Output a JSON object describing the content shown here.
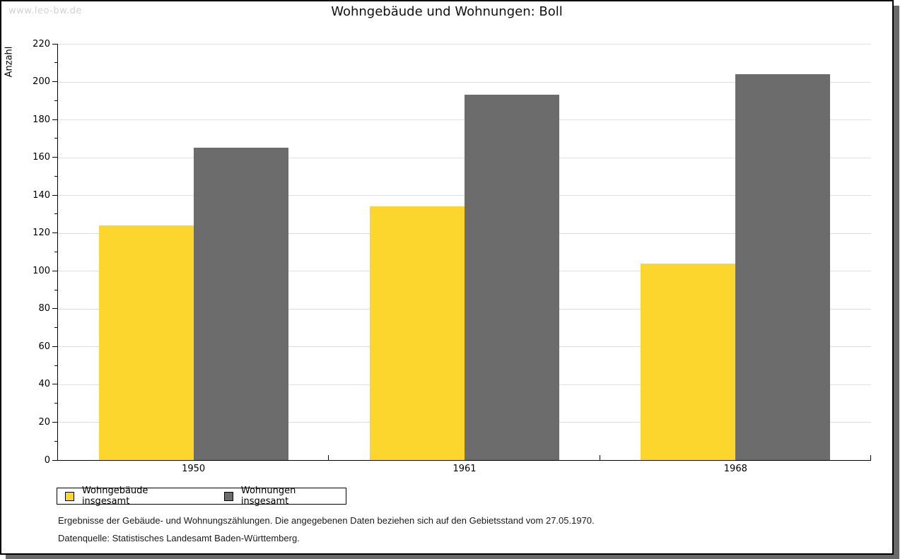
{
  "watermark": "www.leo-bw.de",
  "title": "Wohngebäude und Wohnungen: Boll",
  "chart_data": {
    "type": "bar",
    "title": "Wohngebäude und Wohnungen: Boll",
    "ylabel": "Anzahl",
    "xlabel": "",
    "categories": [
      "1950",
      "1961",
      "1968"
    ],
    "series": [
      {
        "name": "Wohngebäude insgesamt",
        "color": "#FCD52D",
        "values": [
          124,
          134,
          104
        ]
      },
      {
        "name": "Wohnungen insgesamt",
        "color": "#6C6C6C",
        "values": [
          165,
          193,
          204
        ]
      }
    ],
    "ylim": [
      0,
      220
    ],
    "y_major_step": 20,
    "y_minor_step": 10,
    "grid": true,
    "legend_position": "bottom-left"
  },
  "footnotes": {
    "line1": "Ergebnisse der Gebäude- und Wohnungszählungen. Die angegebenen Daten beziehen sich auf den Gebietsstand vom 27.05.1970.",
    "line2": "Datenquelle: Statistisches Landesamt Baden-Württemberg."
  },
  "colors": {
    "bar_yellow": "#FCD52D",
    "bar_gray": "#6C6C6C",
    "gridline": "#e0e0e0",
    "shadow": "#6a6a6a",
    "watermark_text": "#d2d2d2"
  }
}
